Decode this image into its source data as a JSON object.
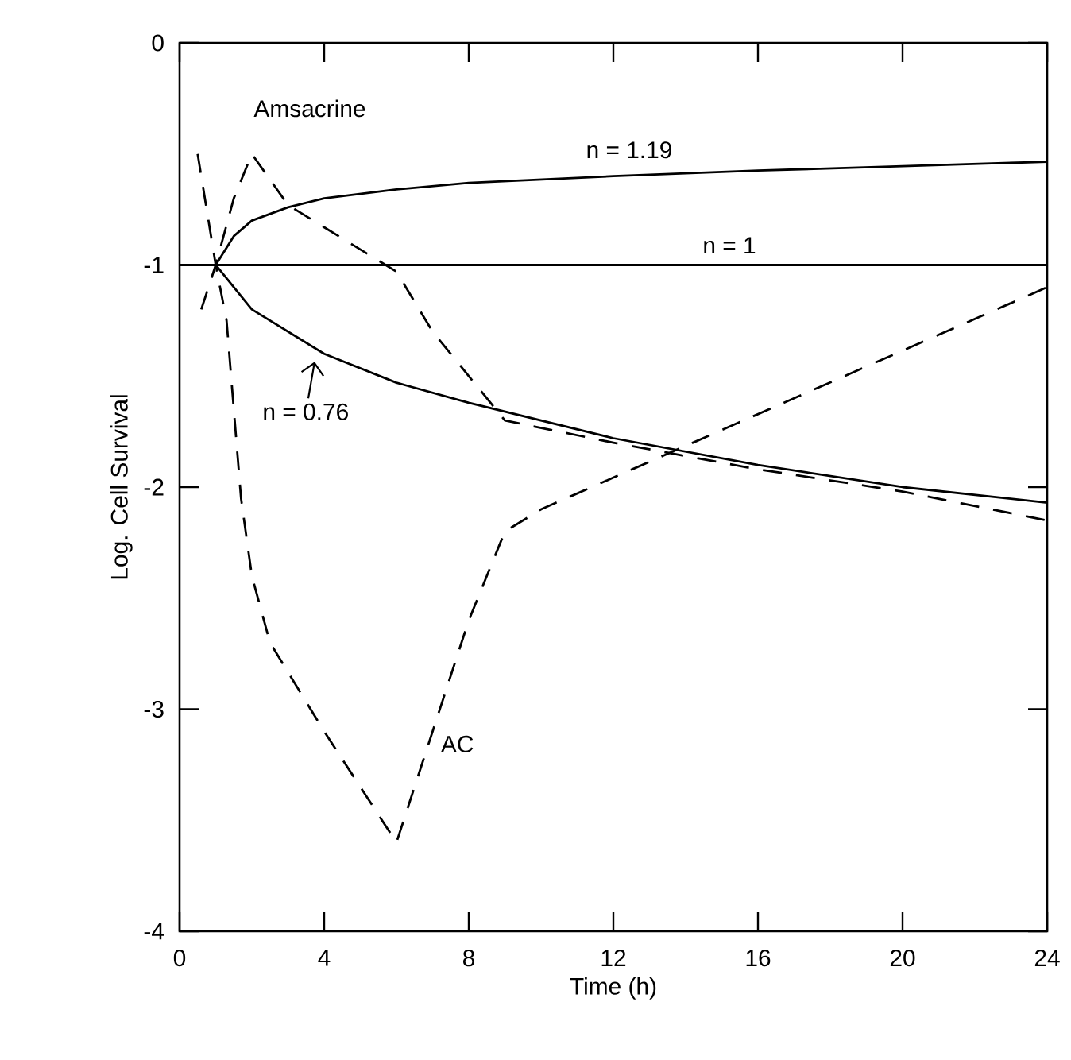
{
  "chart_data": {
    "type": "line",
    "xlabel": "Time (h)",
    "ylabel": "Log. Cell Survival",
    "xlim": [
      0,
      24
    ],
    "ylim": [
      -4,
      0
    ],
    "xticks": [
      0,
      4,
      8,
      12,
      16,
      20,
      24
    ],
    "yticks": [
      -4,
      -3,
      -2,
      -1,
      0
    ],
    "grid": false,
    "marker": "none",
    "series": [
      {
        "name": "n = 1.19",
        "color": "#000000",
        "line_style": "solid",
        "x": [
          1,
          1.5,
          2,
          3,
          4,
          6,
          8,
          12,
          16,
          20,
          24
        ],
        "values": [
          -1,
          -0.87,
          -0.8,
          -0.74,
          -0.7,
          -0.66,
          -0.63,
          -0.6,
          -0.575,
          -0.555,
          -0.535
        ]
      },
      {
        "name": "n = 1",
        "color": "#000000",
        "line_style": "solid",
        "x": [
          0,
          24
        ],
        "values": [
          -1,
          -1
        ]
      },
      {
        "name": "n = 0.76",
        "color": "#000000",
        "line_style": "solid",
        "x": [
          1,
          2,
          4,
          6,
          8,
          12,
          16,
          20,
          24
        ],
        "values": [
          -1,
          -1.2,
          -1.4,
          -1.53,
          -1.62,
          -1.78,
          -1.9,
          -2.0,
          -2.07
        ]
      },
      {
        "name": "Amsacrine",
        "color": "#000000",
        "line_style": "dashed",
        "x": [
          0.6,
          1,
          1.5,
          2,
          3,
          4,
          6,
          7,
          8,
          9,
          12,
          16,
          20,
          24
        ],
        "values": [
          -1.2,
          -1,
          -0.7,
          -0.5,
          -0.73,
          -0.83,
          -1.03,
          -1.3,
          -1.5,
          -1.7,
          -1.8,
          -1.92,
          -2.02,
          -2.15
        ]
      },
      {
        "name": "AC",
        "color": "#000000",
        "line_style": "dashed",
        "x": [
          0.5,
          0.75,
          1,
          1.3,
          1.7,
          2,
          2.5,
          4,
          6,
          7,
          8,
          9,
          10,
          24
        ],
        "values": [
          -0.5,
          -0.75,
          -1,
          -1.25,
          -2.05,
          -2.4,
          -2.7,
          -3.1,
          -3.6,
          -3.1,
          -2.6,
          -2.2,
          -2.1,
          -1.1
        ]
      }
    ]
  }
}
